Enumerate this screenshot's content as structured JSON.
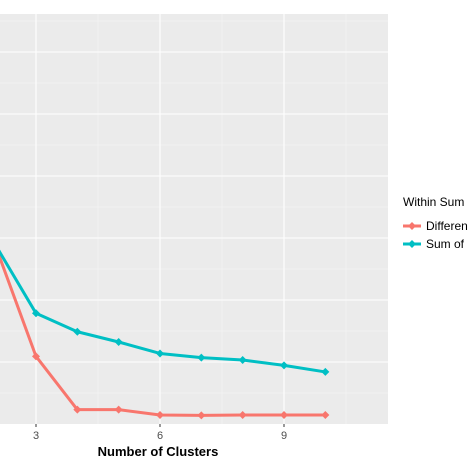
{
  "chart_data": {
    "type": "line",
    "xlabel": "Number of Clusters",
    "x_ticks": [
      3,
      6,
      9
    ],
    "xlim": [
      2,
      12.5
    ],
    "ylim": [
      0,
      1.0
    ],
    "grid": true,
    "legend_position": "right",
    "legend_title": "Within Sum",
    "series": [
      {
        "name": "Differen",
        "color": "#F8766D",
        "x": [
          2,
          3,
          4,
          5,
          6,
          7,
          8,
          9,
          10
        ],
        "y": [
          0.44,
          0.165,
          0.035,
          0.035,
          0.022,
          0.021,
          0.022,
          0.022,
          0.022
        ]
      },
      {
        "name": "Sum of",
        "color": "#00BFC4",
        "x": [
          2,
          3,
          4,
          5,
          6,
          7,
          8,
          9,
          10
        ],
        "y": [
          0.44,
          0.27,
          0.225,
          0.2,
          0.172,
          0.162,
          0.156,
          0.143,
          0.127
        ]
      }
    ]
  }
}
